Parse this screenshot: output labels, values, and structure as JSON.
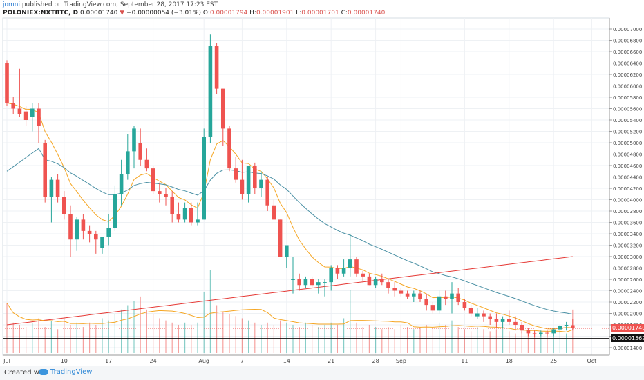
{
  "header": {
    "author": "jomni",
    "published": " published on TradingView.com, September 28, 2017 17:23 EST",
    "symbol": "POLONIEX:NXTBTC, D",
    "last": "0.00001740",
    "change": "−0.00000054 (−3.01%)",
    "o_label": "O:",
    "o_value": "0.00001794",
    "h_label": "H:",
    "h_value": "0.00001901",
    "l_label": "L:",
    "l_value": "0.00001701",
    "c_label": "C:",
    "c_value": "0.00001740"
  },
  "price_tags": {
    "last": "0.00001740",
    "line": "0.00001562"
  },
  "footer": {
    "created": "Created with",
    "brand": "TradingView"
  },
  "colors": {
    "up": "#26a69a",
    "down": "#ef5350",
    "ema_short": "#f5a623",
    "ma_mid": "#4a90a4",
    "ma_long": "#e53935"
  },
  "chart_data": {
    "type": "candlestick",
    "y_ticks": [
      "0.00007000",
      "0.00006800",
      "0.00006600",
      "0.00006400",
      "0.00006200",
      "0.00006000",
      "0.00005800",
      "0.00005600",
      "0.00005400",
      "0.00005200",
      "0.00005000",
      "0.00004800",
      "0.00004600",
      "0.00004400",
      "0.00004200",
      "0.00004000",
      "0.00003800",
      "0.00003600",
      "0.00003400",
      "0.00003200",
      "0.00003000",
      "0.00002800",
      "0.00002600",
      "0.00002400",
      "0.00002200",
      "0.00002000",
      "0.00001800",
      "0.00001600",
      "0.00001400"
    ],
    "y_tick_values": [
      7000,
      6800,
      6600,
      6400,
      6200,
      6000,
      5800,
      5600,
      5400,
      5200,
      5000,
      4800,
      4600,
      4400,
      4200,
      4000,
      3800,
      3600,
      3400,
      3200,
      3000,
      2800,
      2600,
      2400,
      2200,
      2000,
      1800,
      1600,
      1400
    ],
    "x_ticks": [
      {
        "label": "Jul",
        "day": 0
      },
      {
        "label": "10",
        "day": 9
      },
      {
        "label": "17",
        "day": 16
      },
      {
        "label": "24",
        "day": 23
      },
      {
        "label": "Aug",
        "day": 31
      },
      {
        "label": "7",
        "day": 37
      },
      {
        "label": "14",
        "day": 44
      },
      {
        "label": "21",
        "day": 51
      },
      {
        "label": "28",
        "day": 58
      },
      {
        "label": "Sep",
        "day": 62
      },
      {
        "label": "11",
        "day": 72
      },
      {
        "label": "18",
        "day": 79
      },
      {
        "label": "25",
        "day": 86
      },
      {
        "label": "Oct",
        "day": 92
      }
    ],
    "ohlc": [
      [
        6400,
        6450,
        5650,
        5700
      ],
      [
        5700,
        5800,
        5500,
        5600
      ],
      [
        5600,
        6300,
        5450,
        5500
      ],
      [
        5550,
        5650,
        5300,
        5400
      ],
      [
        5450,
        5700,
        5200,
        5600
      ],
      [
        5600,
        5700,
        5000,
        5300
      ],
      [
        5000,
        5050,
        3950,
        4050
      ],
      [
        4050,
        4400,
        3600,
        4350
      ],
      [
        4350,
        4450,
        3950,
        4050
      ],
      [
        4050,
        4150,
        3650,
        3750
      ],
      [
        3750,
        3900,
        3000,
        3300
      ],
      [
        3300,
        3700,
        3100,
        3650
      ],
      [
        3650,
        3750,
        3300,
        3450
      ],
      [
        3450,
        3550,
        3250,
        3400
      ],
      [
        3400,
        3450,
        3050,
        3300
      ],
      [
        3150,
        3300,
        3050,
        3350
      ],
      [
        3350,
        3750,
        3200,
        3500
      ],
      [
        3500,
        4250,
        3450,
        4100
      ],
      [
        4100,
        4700,
        3900,
        4450
      ],
      [
        4450,
        5150,
        4350,
        4850
      ],
      [
        4850,
        5300,
        4550,
        5250
      ],
      [
        5000,
        5250,
        4600,
        4700
      ],
      [
        4700,
        4900,
        4500,
        4550
      ],
      [
        4550,
        4600,
        4100,
        4150
      ],
      [
        4150,
        4300,
        3950,
        4100
      ],
      [
        4100,
        4200,
        3900,
        4050
      ],
      [
        4050,
        4150,
        3600,
        3750
      ],
      [
        3750,
        3950,
        3600,
        3650
      ],
      [
        3650,
        3950,
        3600,
        3850
      ],
      [
        3850,
        3950,
        3550,
        3600
      ],
      [
        3600,
        3950,
        3550,
        3650
      ],
      [
        3650,
        5250,
        3650,
        5100
      ],
      [
        5100,
        6900,
        5000,
        6700
      ],
      [
        6700,
        6750,
        5850,
        5950
      ],
      [
        5950,
        5950,
        4950,
        5250
      ],
      [
        5250,
        5300,
        4500,
        4550
      ],
      [
        4550,
        4750,
        4300,
        4350
      ],
      [
        4350,
        4700,
        4000,
        4100
      ],
      [
        4100,
        4600,
        3950,
        4600
      ],
      [
        4600,
        4650,
        4100,
        4200
      ],
      [
        4200,
        4500,
        4050,
        4350
      ],
      [
        4350,
        4400,
        3800,
        3900
      ],
      [
        3900,
        4000,
        3650,
        3650
      ],
      [
        3650,
        3650,
        3000,
        3000
      ],
      [
        3000,
        3200,
        2800,
        3200
      ],
      [
        2600,
        3000,
        2350,
        2600
      ],
      [
        2600,
        2700,
        2400,
        2500
      ],
      [
        2500,
        2650,
        2450,
        2600
      ],
      [
        2600,
        2650,
        2450,
        2500
      ],
      [
        2500,
        2600,
        2350,
        2550
      ],
      [
        2550,
        2600,
        2300,
        2550
      ],
      [
        2550,
        2850,
        2400,
        2800
      ],
      [
        2800,
        2850,
        2600,
        2700
      ],
      [
        2700,
        2950,
        2650,
        2800
      ],
      [
        2800,
        3400,
        2650,
        2950
      ],
      [
        2950,
        3000,
        2650,
        2700
      ],
      [
        2700,
        2750,
        2550,
        2650
      ],
      [
        2650,
        2700,
        2500,
        2500
      ],
      [
        2500,
        2650,
        2450,
        2600
      ],
      [
        2600,
        2700,
        2500,
        2550
      ],
      [
        2550,
        2600,
        2350,
        2450
      ],
      [
        2450,
        2550,
        2300,
        2400
      ],
      [
        2400,
        2450,
        2300,
        2350
      ],
      [
        2350,
        2400,
        2250,
        2300
      ],
      [
        2300,
        2400,
        2200,
        2350
      ],
      [
        2350,
        2400,
        2200,
        2250
      ],
      [
        2250,
        2350,
        2050,
        2150
      ],
      [
        2150,
        2200,
        2000,
        2050
      ],
      [
        2050,
        2400,
        2000,
        2300
      ],
      [
        2300,
        2400,
        2150,
        2250
      ],
      [
        2250,
        2550,
        2000,
        2350
      ],
      [
        2350,
        2450,
        2150,
        2200
      ],
      [
        2200,
        2250,
        2050,
        2100
      ],
      [
        2100,
        2150,
        1950,
        2000
      ],
      [
        1950,
        2100,
        1900,
        2000
      ],
      [
        2000,
        2050,
        1850,
        1950
      ],
      [
        1950,
        2000,
        1800,
        1900
      ],
      [
        1900,
        2000,
        1750,
        1850
      ],
      [
        1850,
        1950,
        1750,
        1900
      ],
      [
        1900,
        2050,
        1800,
        1850
      ],
      [
        1850,
        1950,
        1700,
        1800
      ],
      [
        1800,
        1850,
        1650,
        1700
      ],
      [
        1700,
        1750,
        1600,
        1650
      ],
      [
        1650,
        1700,
        1580,
        1640
      ],
      [
        1640,
        1700,
        1600,
        1660
      ],
      [
        1660,
        1700,
        1600,
        1650
      ],
      [
        1650,
        1750,
        1600,
        1720
      ],
      [
        1720,
        1800,
        1650,
        1780
      ],
      [
        1780,
        1850,
        1700,
        1800
      ],
      [
        1794,
        1901,
        1701,
        1740
      ]
    ],
    "volume": [
      1150,
      700,
      650,
      600,
      700,
      800,
      600,
      750,
      550,
      800,
      650,
      700,
      600,
      700,
      650,
      800,
      750,
      900,
      1000,
      1100,
      1200,
      1300,
      1000,
      900,
      800,
      750,
      700,
      650,
      700,
      650,
      700,
      1400,
      1900,
      1100,
      950,
      900,
      850,
      800,
      750,
      700,
      650,
      700,
      650,
      750,
      700,
      650,
      600,
      700,
      650,
      600,
      650,
      700,
      650,
      800,
      1450,
      700,
      600,
      650,
      600,
      550,
      600,
      550,
      650,
      600,
      550,
      600,
      650,
      600,
      700,
      650,
      750,
      600,
      550,
      500,
      600,
      550,
      500,
      550,
      600,
      500,
      450,
      500,
      450,
      500,
      450,
      500,
      550,
      500,
      450,
      1000
    ]
  }
}
